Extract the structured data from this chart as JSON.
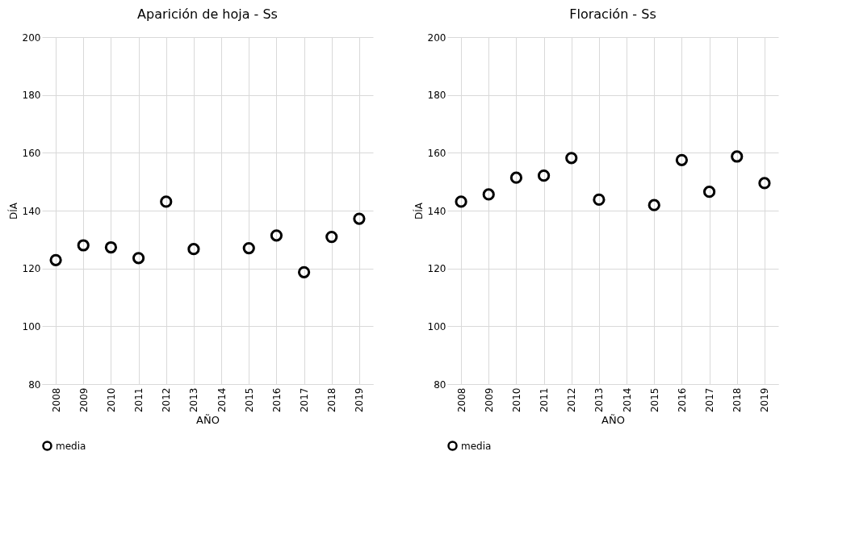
{
  "chart_data": [
    {
      "type": "scatter",
      "title": "Aparición de hoja - Ss",
      "xlabel": "AÑO",
      "ylabel": "DÍA",
      "categories": [
        "2008",
        "2009",
        "2010",
        "2011",
        "2012",
        "2013",
        "2014",
        "2015",
        "2016",
        "2017",
        "2018",
        "2019"
      ],
      "series": [
        {
          "name": "media",
          "color": "#000000",
          "values": [
            122.9,
            128,
            127.3,
            123.6,
            143.1,
            126.7,
            null,
            127,
            131.4,
            118.7,
            130.9,
            137.2
          ]
        }
      ],
      "ylim": [
        80,
        200
      ],
      "yticks": [
        80,
        100,
        120,
        140,
        160,
        180,
        200
      ],
      "grid": true,
      "legend": "bottom",
      "marker": "circle"
    },
    {
      "type": "scatter",
      "title": "Floración - Ss",
      "xlabel": "AÑO",
      "ylabel": "DÍA",
      "categories": [
        "2008",
        "2009",
        "2010",
        "2011",
        "2012",
        "2013",
        "2014",
        "2015",
        "2016",
        "2017",
        "2018",
        "2019"
      ],
      "series": [
        {
          "name": "media",
          "color": "#000000",
          "values": [
            143.1,
            145.6,
            151.4,
            152.1,
            158.2,
            143.8,
            null,
            141.9,
            157.5,
            146.5,
            158.7,
            149.5
          ]
        }
      ],
      "ylim": [
        80,
        200
      ],
      "yticks": [
        80,
        100,
        120,
        140,
        160,
        180,
        200
      ],
      "grid": true,
      "legend": "bottom",
      "marker": "circle"
    }
  ]
}
